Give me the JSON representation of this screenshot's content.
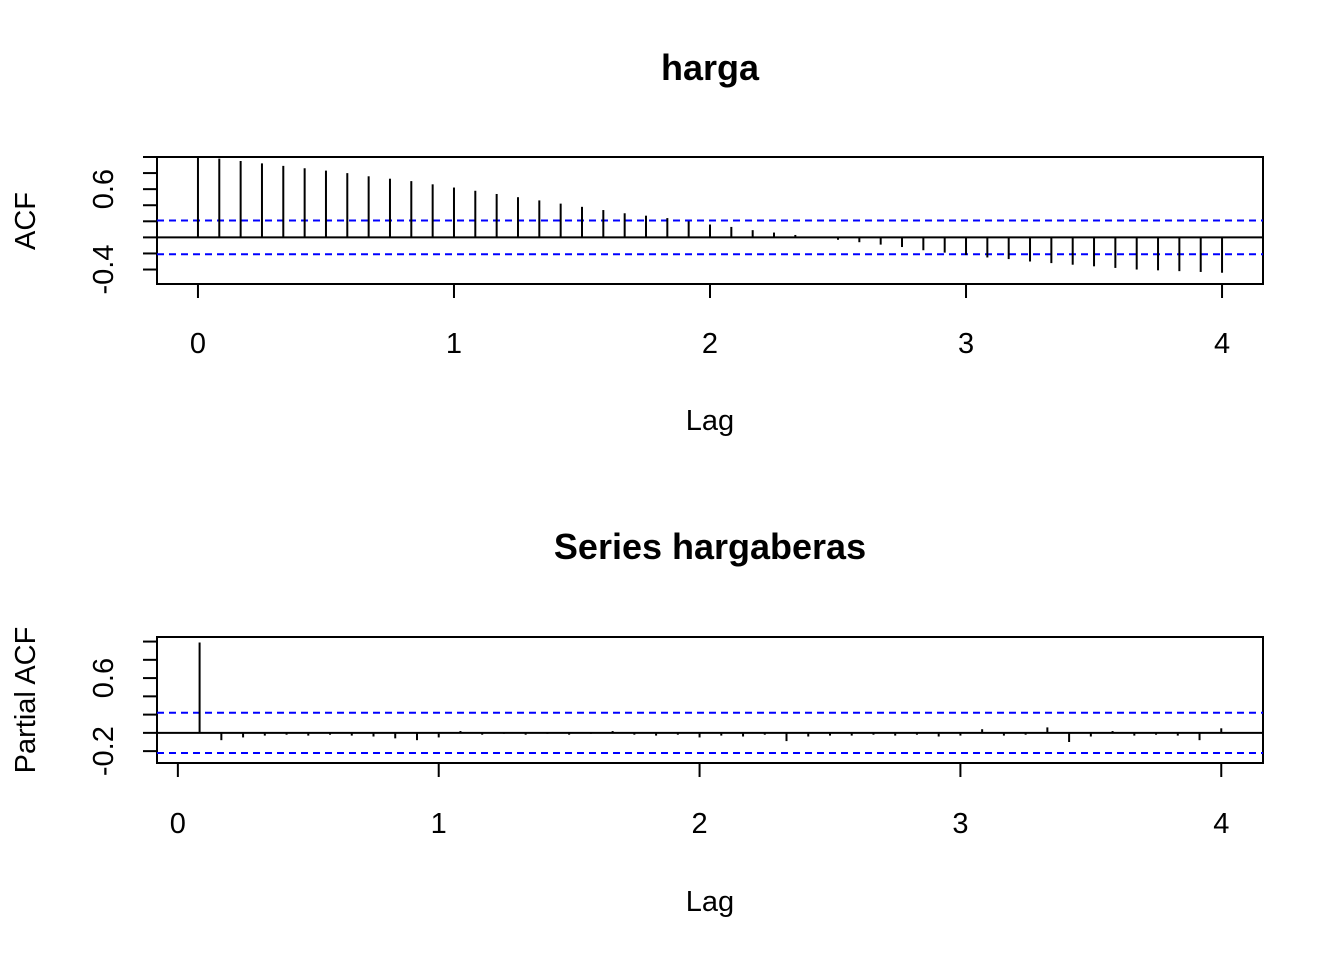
{
  "chart_data": [
    {
      "type": "bar",
      "title": "harga",
      "xlabel": "Lag",
      "ylabel": "ACF",
      "ylim": [
        -0.58,
        1.0
      ],
      "xlim": [
        -0.16,
        4.16
      ],
      "x_ticks": [
        "0",
        "1",
        "2",
        "3",
        "4"
      ],
      "y_ticks": [
        "-0.4",
        "0.6"
      ],
      "confidence_band": {
        "upper": 0.21,
        "lower": -0.21,
        "color": "#0000ff"
      },
      "series": [
        {
          "x": [
            0,
            0.0833,
            0.1667,
            0.25,
            0.3333,
            0.4167,
            0.5,
            0.5833,
            0.6667,
            0.75,
            0.8333,
            0.9167,
            1,
            1.0833,
            1.1667,
            1.25,
            1.3333,
            1.4167,
            1.5,
            1.5833,
            1.6667,
            1.75,
            1.8333,
            1.9167,
            2,
            2.0833,
            2.1667,
            2.25,
            2.3333,
            2.4167,
            2.5,
            2.5833,
            2.6667,
            2.75,
            2.8333,
            2.9167,
            3,
            3.0833,
            3.1667,
            3.25,
            3.3333,
            3.4167,
            3.5,
            3.5833,
            3.6667,
            3.75,
            3.8333,
            3.9167,
            4
          ],
          "values": [
            1.0,
            0.98,
            0.95,
            0.92,
            0.89,
            0.86,
            0.83,
            0.8,
            0.76,
            0.73,
            0.7,
            0.66,
            0.62,
            0.58,
            0.54,
            0.5,
            0.46,
            0.42,
            0.38,
            0.34,
            0.3,
            0.27,
            0.24,
            0.2,
            0.16,
            0.13,
            0.09,
            0.06,
            0.03,
            0.0,
            -0.03,
            -0.06,
            -0.09,
            -0.12,
            -0.16,
            -0.19,
            -0.22,
            -0.25,
            -0.27,
            -0.3,
            -0.32,
            -0.34,
            -0.36,
            -0.38,
            -0.4,
            -0.41,
            -0.42,
            -0.43,
            -0.44
          ]
        }
      ]
    },
    {
      "type": "bar",
      "title": "Series  hargaberas",
      "xlabel": "Lag",
      "ylabel": "Partial ACF",
      "ylim": [
        -0.33,
        1.05
      ],
      "xlim": [
        -0.08,
        4.16
      ],
      "x_ticks": [
        "0",
        "1",
        "2",
        "3",
        "4"
      ],
      "y_ticks": [
        "-0.2",
        "0.6"
      ],
      "confidence_band": {
        "upper": 0.22,
        "lower": -0.22,
        "color": "#0000ff"
      },
      "series": [
        {
          "x": [
            0.0833,
            0.1667,
            0.25,
            0.3333,
            0.4167,
            0.5,
            0.5833,
            0.6667,
            0.75,
            0.8333,
            0.9167,
            1,
            1.0833,
            1.1667,
            1.25,
            1.3333,
            1.4167,
            1.5,
            1.5833,
            1.6667,
            1.75,
            1.8333,
            1.9167,
            2,
            2.0833,
            2.1667,
            2.25,
            2.3333,
            2.4167,
            2.5,
            2.5833,
            2.6667,
            2.75,
            2.8333,
            2.9167,
            3,
            3.0833,
            3.1667,
            3.25,
            3.3333,
            3.4167,
            3.5,
            3.5833,
            3.6667,
            3.75,
            3.8333,
            3.9167,
            4
          ],
          "values": [
            0.99,
            -0.08,
            -0.05,
            -0.03,
            -0.02,
            -0.03,
            -0.02,
            -0.03,
            -0.04,
            -0.06,
            -0.08,
            -0.05,
            0.02,
            -0.02,
            -0.01,
            -0.02,
            -0.01,
            -0.02,
            -0.01,
            0.02,
            -0.02,
            -0.03,
            -0.02,
            -0.05,
            -0.03,
            -0.04,
            -0.02,
            -0.09,
            -0.04,
            -0.03,
            -0.03,
            -0.02,
            -0.03,
            -0.02,
            -0.04,
            -0.03,
            0.04,
            -0.03,
            -0.02,
            0.06,
            -0.1,
            -0.04,
            0.02,
            -0.03,
            -0.02,
            -0.03,
            -0.08,
            0.05
          ]
        }
      ]
    }
  ]
}
